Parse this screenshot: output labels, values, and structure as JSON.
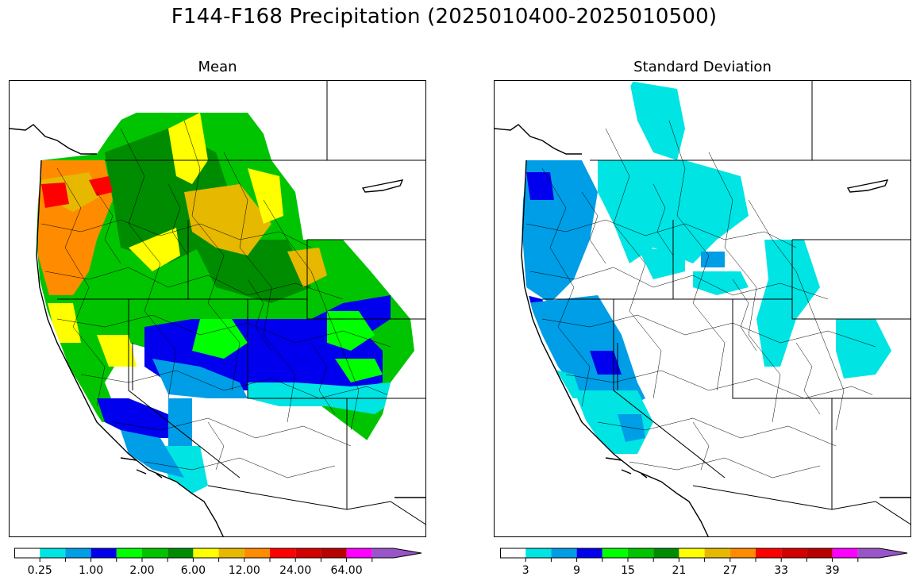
{
  "title": "F144-F168 Precipitation (2025010400-2025010500)",
  "panels": [
    {
      "id": "mean",
      "title": "Mean",
      "colorbar": {
        "colors": [
          "#ffffff",
          "#00e4e4",
          "#009ee6",
          "#0000ee",
          "#00ff00",
          "#00c400",
          "#008c00",
          "#ffff00",
          "#e6b800",
          "#ff8c00",
          "#ff0000",
          "#d40000",
          "#b80000",
          "#ff00ff",
          "#9954c8"
        ],
        "tick_labels": [
          "0.25",
          "1.00",
          "2.00",
          "6.00",
          "12.00",
          "24.00",
          "64.00"
        ],
        "label_positions": [
          1,
          3,
          5,
          7,
          9,
          11,
          13
        ]
      }
    },
    {
      "id": "stddev",
      "title": "Standard Deviation",
      "colorbar": {
        "colors": [
          "#ffffff",
          "#00e4e4",
          "#009ee6",
          "#0000ee",
          "#00ff00",
          "#00c400",
          "#008c00",
          "#ffff00",
          "#e6b800",
          "#ff8c00",
          "#ff0000",
          "#d40000",
          "#b80000",
          "#ff00ff",
          "#9954c8"
        ],
        "tick_labels": [
          "3",
          "9",
          "15",
          "21",
          "27",
          "33",
          "39"
        ],
        "label_positions": [
          1,
          3,
          5,
          7,
          9,
          11,
          13
        ]
      }
    }
  ]
}
